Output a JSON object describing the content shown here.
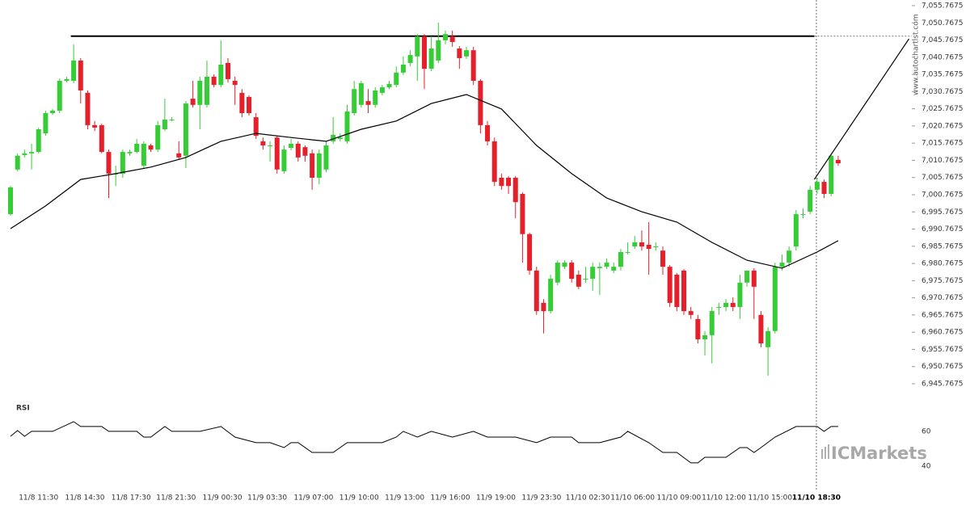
{
  "chart_data": {
    "type": "candlestick",
    "up_color": "#35cc35",
    "down_color": "#e5202b",
    "xlim": [
      -1.5,
      128.5
    ],
    "xticks": [
      {
        "value": 4.0,
        "label": "11/8 11:30"
      },
      {
        "value": 10.6,
        "label": "11/8 14:30"
      },
      {
        "value": 17.2,
        "label": "11/8 17:30"
      },
      {
        "value": 23.6,
        "label": "11/8 21:30"
      },
      {
        "value": 30.2,
        "label": "11/9 00:30"
      },
      {
        "value": 36.6,
        "label": "11/9 03:30"
      },
      {
        "value": 43.2,
        "label": "11/9 07:00"
      },
      {
        "value": 49.7,
        "label": "11/9 10:00"
      },
      {
        "value": 56.2,
        "label": "11/9 13:00"
      },
      {
        "value": 62.7,
        "label": "11/9 16:00"
      },
      {
        "value": 69.2,
        "label": "11/9 19:00"
      },
      {
        "value": 75.7,
        "label": "11/9 23:30"
      },
      {
        "value": 82.3,
        "label": "11/10 02:30"
      },
      {
        "value": 88.7,
        "label": "11/10 06:00"
      },
      {
        "value": 95.3,
        "label": "11/10 09:00"
      },
      {
        "value": 101.7,
        "label": "11/10 12:00"
      },
      {
        "value": 108.3,
        "label": "11/10 15:00"
      },
      {
        "value": 114.9,
        "label": "11/10 18:30"
      }
    ],
    "ylim": [
      6942.24,
      7057.41
    ],
    "yticks": [
      {
        "value": 7055.7675,
        "label": "7,055.7675"
      },
      {
        "value": 7050.7675,
        "label": "7,050.7675"
      },
      {
        "value": 7045.7675,
        "label": "7,045.7675"
      },
      {
        "value": 7040.7675,
        "label": "7,040.7675"
      },
      {
        "value": 7035.7675,
        "label": "7,035.7675"
      },
      {
        "value": 7030.7675,
        "label": "7,030.7675"
      },
      {
        "value": 7025.7675,
        "label": "7,025.7675"
      },
      {
        "value": 7020.7675,
        "label": "7,020.7675"
      },
      {
        "value": 7015.7675,
        "label": "7,015.7675"
      },
      {
        "value": 7010.7675,
        "label": "7,010.7675"
      },
      {
        "value": 7005.7675,
        "label": "7,005.7675"
      },
      {
        "value": 7000.7675,
        "label": "7,000.7675"
      },
      {
        "value": 6995.7675,
        "label": "6,995.7675"
      },
      {
        "value": 6990.7675,
        "label": "6,990.7675"
      },
      {
        "value": 6985.7675,
        "label": "6,985.7675"
      },
      {
        "value": 6980.7675,
        "label": "6,980.7675"
      },
      {
        "value": 6975.7675,
        "label": "6,975.7675"
      },
      {
        "value": 6970.7675,
        "label": "6,970.7675"
      },
      {
        "value": 6965.7675,
        "label": "6,965.7675"
      },
      {
        "value": 6960.7675,
        "label": "6,960.7675"
      },
      {
        "value": 6955.7675,
        "label": "6,955.7675"
      },
      {
        "value": 6950.7675,
        "label": "6,950.7675"
      },
      {
        "value": 6945.7675,
        "label": "6,945.7675"
      }
    ],
    "ohlc": [
      [
        6995.1,
        7003.3,
        6994.7,
        7002.9
      ],
      [
        7008.1,
        7012.8,
        7007.6,
        7012.1
      ],
      [
        7012.3,
        7013.9,
        7011.6,
        7012.8
      ],
      [
        7012.8,
        7015.6,
        7008.1,
        7013.2
      ],
      [
        7013.2,
        7020.3,
        7012.8,
        7019.8
      ],
      [
        7018.6,
        7025.2,
        7017.9,
        7024.5
      ],
      [
        7024.5,
        7025.7,
        7024.0,
        7025.2
      ],
      [
        7025.2,
        7034.6,
        7024.5,
        7033.9
      ],
      [
        7033.9,
        7035.1,
        7033.4,
        7034.4
      ],
      [
        7033.9,
        7044.5,
        7033.2,
        7039.8
      ],
      [
        7039.8,
        7040.5,
        7027.3,
        7031.1
      ],
      [
        7030.4,
        7031.1,
        7019.8,
        7021.0
      ],
      [
        7021.0,
        7022.2,
        7019.3,
        7020.3
      ],
      [
        7021.0,
        7021.4,
        7012.8,
        7013.2
      ],
      [
        7013.2,
        7013.9,
        6999.8,
        7006.9
      ],
      [
        7006.9,
        7009.2,
        7003.3,
        7006.9
      ],
      [
        7006.9,
        7013.9,
        7005.7,
        7013.2
      ],
      [
        7012.8,
        7013.9,
        7012.1,
        7013.2
      ],
      [
        7013.2,
        7017.0,
        7012.8,
        7015.6
      ],
      [
        7009.2,
        7016.3,
        7008.5,
        7015.6
      ],
      [
        7015.1,
        7015.6,
        7013.2,
        7013.9
      ],
      [
        7013.9,
        7022.2,
        7013.2,
        7021.0
      ],
      [
        7019.8,
        7028.7,
        7019.3,
        7022.6
      ],
      [
        7022.6,
        7023.3,
        7022.2,
        7022.6
      ],
      [
        7012.8,
        7016.3,
        7010.9,
        7011.6
      ],
      [
        7012.1,
        7028.0,
        7008.5,
        7027.3
      ],
      [
        7028.7,
        7033.9,
        7026.1,
        7026.9
      ],
      [
        7026.9,
        7035.1,
        7019.8,
        7033.9
      ],
      [
        7026.9,
        7039.8,
        7026.1,
        7035.1
      ],
      [
        7035.1,
        7035.8,
        7032.0,
        7032.7
      ],
      [
        7032.7,
        7045.7,
        7032.0,
        7038.6
      ],
      [
        7039.1,
        7040.5,
        7033.4,
        7034.4
      ],
      [
        7033.9,
        7035.1,
        7026.9,
        7032.7
      ],
      [
        7030.4,
        7031.5,
        7023.3,
        7024.5
      ],
      [
        7029.2,
        7029.7,
        7023.8,
        7024.5
      ],
      [
        7023.3,
        7024.5,
        7017.0,
        7017.9
      ],
      [
        7016.3,
        7017.4,
        7013.9,
        7015.1
      ],
      [
        7015.1,
        7016.3,
        7010.4,
        7015.1
      ],
      [
        7017.4,
        7017.9,
        7006.9,
        7008.1
      ],
      [
        7007.6,
        7015.1,
        7006.9,
        7013.9
      ],
      [
        7014.4,
        7017.0,
        7013.7,
        7015.6
      ],
      [
        7015.6,
        7016.3,
        7010.4,
        7011.6
      ],
      [
        7014.6,
        7015.1,
        7010.4,
        7012.1
      ],
      [
        7012.8,
        7013.9,
        7002.2,
        7005.7
      ],
      [
        7005.7,
        7013.9,
        7003.8,
        7012.8
      ],
      [
        7008.1,
        7016.3,
        7007.3,
        7015.1
      ],
      [
        7016.3,
        7023.3,
        7015.6,
        7018.2
      ],
      [
        7017.0,
        7018.6,
        7016.3,
        7017.4
      ],
      [
        7016.3,
        7026.9,
        7015.6,
        7025.0
      ],
      [
        7024.5,
        7033.9,
        7023.8,
        7031.5
      ],
      [
        7026.9,
        7033.9,
        7026.1,
        7033.2
      ],
      [
        7028.0,
        7031.5,
        7024.5,
        7026.9
      ],
      [
        7026.9,
        7032.0,
        7026.1,
        7031.1
      ],
      [
        7030.4,
        7032.7,
        7029.7,
        7032.0
      ],
      [
        7032.0,
        7033.9,
        7031.5,
        7033.0
      ],
      [
        7032.7,
        7038.1,
        7032.0,
        7036.3
      ],
      [
        7036.3,
        7041.0,
        7035.6,
        7038.6
      ],
      [
        7039.1,
        7042.8,
        7038.1,
        7041.4
      ],
      [
        7041.0,
        7047.5,
        7033.9,
        7046.8
      ],
      [
        7046.8,
        7047.5,
        7031.5,
        7037.4
      ],
      [
        7037.4,
        7046.8,
        7036.7,
        7043.3
      ],
      [
        7039.8,
        7050.8,
        7039.1,
        7045.7
      ],
      [
        7045.7,
        7048.5,
        7044.5,
        7047.5
      ],
      [
        7046.8,
        7048.5,
        7043.8,
        7045.2
      ],
      [
        7043.3,
        7044.0,
        7037.4,
        7040.5
      ],
      [
        7041.0,
        7043.8,
        7040.3,
        7042.8
      ],
      [
        7042.8,
        7043.8,
        7032.7,
        7033.9
      ],
      [
        7033.9,
        7034.4,
        7018.6,
        7021.0
      ],
      [
        7021.0,
        7022.2,
        7015.1,
        7016.3
      ],
      [
        7016.3,
        7017.4,
        7003.3,
        7004.5
      ],
      [
        7005.7,
        7006.9,
        7002.2,
        7003.3
      ],
      [
        7005.7,
        7006.2,
        7001.0,
        7003.3
      ],
      [
        7005.7,
        7006.2,
        6993.9,
        6998.6
      ],
      [
        7001.0,
        7001.5,
        6981.0,
        6989.3
      ],
      [
        6989.3,
        6989.7,
        6977.5,
        6978.7
      ],
      [
        6978.7,
        6979.8,
        6965.8,
        6966.9
      ],
      [
        6969.3,
        6970.4,
        6960.4,
        6966.9
      ],
      [
        6966.9,
        6977.5,
        6966.2,
        6976.3
      ],
      [
        6975.2,
        6981.7,
        6974.4,
        6981.0
      ],
      [
        6979.8,
        6981.7,
        6979.1,
        6981.0
      ],
      [
        6981.0,
        6981.7,
        6975.2,
        6976.3
      ],
      [
        6977.5,
        6978.7,
        6973.3,
        6974.0
      ],
      [
        6976.3,
        6979.8,
        6975.2,
        6976.3
      ],
      [
        6976.3,
        6981.0,
        6972.8,
        6979.8
      ],
      [
        6979.4,
        6981.0,
        6971.6,
        6979.8
      ],
      [
        6979.8,
        6982.2,
        6979.1,
        6981.0
      ],
      [
        6978.7,
        6981.0,
        6978.0,
        6979.8
      ],
      [
        6979.8,
        6985.0,
        6978.7,
        6984.1
      ],
      [
        6984.1,
        6986.9,
        6983.4,
        6984.1
      ],
      [
        6985.7,
        6988.8,
        6985.0,
        6986.9
      ],
      [
        6986.9,
        6990.4,
        6984.5,
        6985.7
      ],
      [
        6986.2,
        6992.8,
        6977.5,
        6985.0
      ],
      [
        6985.7,
        6986.9,
        6984.5,
        6985.7
      ],
      [
        6984.5,
        6985.7,
        6977.5,
        6979.8
      ],
      [
        6979.8,
        6980.3,
        6968.1,
        6969.3
      ],
      [
        6977.5,
        6978.0,
        6966.9,
        6968.1
      ],
      [
        6978.7,
        6979.1,
        6965.8,
        6966.9
      ],
      [
        6966.9,
        6968.1,
        6964.6,
        6965.8
      ],
      [
        6964.6,
        6965.8,
        6957.5,
        6958.7
      ],
      [
        6958.7,
        6961.1,
        6954.0,
        6959.9
      ],
      [
        6959.9,
        6968.1,
        6951.7,
        6966.9
      ],
      [
        6968.1,
        6969.3,
        6965.8,
        6968.1
      ],
      [
        6968.1,
        6970.4,
        6966.9,
        6969.3
      ],
      [
        6969.3,
        6970.9,
        6966.9,
        6968.1
      ],
      [
        6968.1,
        6977.5,
        6964.6,
        6975.2
      ],
      [
        6975.2,
        6978.7,
        6974.0,
        6978.7
      ],
      [
        6978.7,
        6979.4,
        6964.6,
        6974.0
      ],
      [
        6965.8,
        6966.9,
        6956.4,
        6957.5
      ],
      [
        6956.4,
        6962.2,
        6948.1,
        6961.1
      ],
      [
        6961.1,
        6981.0,
        6960.4,
        6979.8
      ],
      [
        6979.8,
        6983.4,
        6978.7,
        6981.0
      ],
      [
        6981.0,
        6985.7,
        6979.8,
        6984.5
      ],
      [
        6985.7,
        6996.3,
        6984.5,
        6995.1
      ],
      [
        6995.1,
        6996.8,
        6993.9,
        6995.1
      ],
      [
        6995.8,
        7003.3,
        6995.1,
        7002.2
      ],
      [
        7002.2,
        7005.7,
        7001.0,
        7004.5
      ],
      [
        7004.5,
        7005.2,
        6999.8,
        7001.0
      ],
      [
        7001.0,
        7012.8,
        7000.3,
        7012.1
      ],
      [
        7010.9,
        7012.1,
        7009.2,
        7009.9
      ]
    ],
    "ma": {
      "color": "#000000",
      "x": [
        0,
        5,
        10,
        15,
        20,
        25,
        30,
        35,
        40,
        45,
        50,
        55,
        60,
        65,
        70,
        75,
        80,
        85,
        90,
        95,
        100,
        105,
        110,
        115,
        118
      ],
      "values": [
        6990.9,
        6997.5,
        7005.2,
        7006.9,
        7008.8,
        7011.6,
        7016.3,
        7018.6,
        7017.4,
        7016.3,
        7019.8,
        7022.2,
        7027.3,
        7029.9,
        7025.7,
        7015.1,
        7006.9,
        6999.8,
        6995.8,
        6992.8,
        6986.9,
        6981.7,
        6979.4,
        6984.1,
        6987.4
      ]
    },
    "resistance": {
      "value": 7046.9,
      "x": [
        8.6,
        114.6
      ],
      "color": "#000000"
    },
    "projection": {
      "x": [
        114.6,
        128.1
      ],
      "values": [
        7005.2,
        7046.1
      ],
      "color": "#000000"
    },
    "rsi": {
      "title": "RSI",
      "color": "#000000",
      "ylim": [
        29.3,
        78.1
      ],
      "yticks": [
        40,
        60
      ],
      "x": [
        0,
        1,
        2,
        3,
        6,
        9,
        10,
        13,
        14,
        18,
        19,
        20,
        22,
        23,
        27,
        30,
        32,
        35,
        37,
        39,
        40,
        41,
        43,
        46,
        48,
        53,
        55,
        56,
        58,
        60,
        63,
        66,
        68,
        72,
        75,
        77,
        80,
        81,
        84,
        87,
        88,
        91,
        93,
        95,
        97,
        98,
        99,
        102,
        104,
        105,
        106,
        107,
        109,
        112,
        115,
        116,
        117,
        118
      ],
      "values": [
        57.2,
        60.5,
        57.2,
        60,
        60,
        65.6,
        62.8,
        62.8,
        60,
        60,
        56.7,
        56.7,
        62.8,
        60,
        60,
        62.8,
        56.7,
        53.5,
        53.5,
        50.7,
        53.5,
        53.5,
        47.9,
        47.9,
        53.5,
        53.5,
        56.7,
        60,
        56.7,
        60,
        56.7,
        60,
        56.7,
        56.7,
        53.5,
        56.7,
        56.7,
        53.5,
        53.5,
        56.7,
        60,
        53.5,
        47.9,
        47.9,
        41.9,
        41.9,
        45.1,
        45.1,
        50.7,
        50.7,
        47.9,
        50.7,
        56.7,
        62.8,
        62.8,
        60,
        62.8,
        62.8
      ]
    },
    "watermark": "ICMarkets",
    "source": "www.autochartist.com"
  }
}
